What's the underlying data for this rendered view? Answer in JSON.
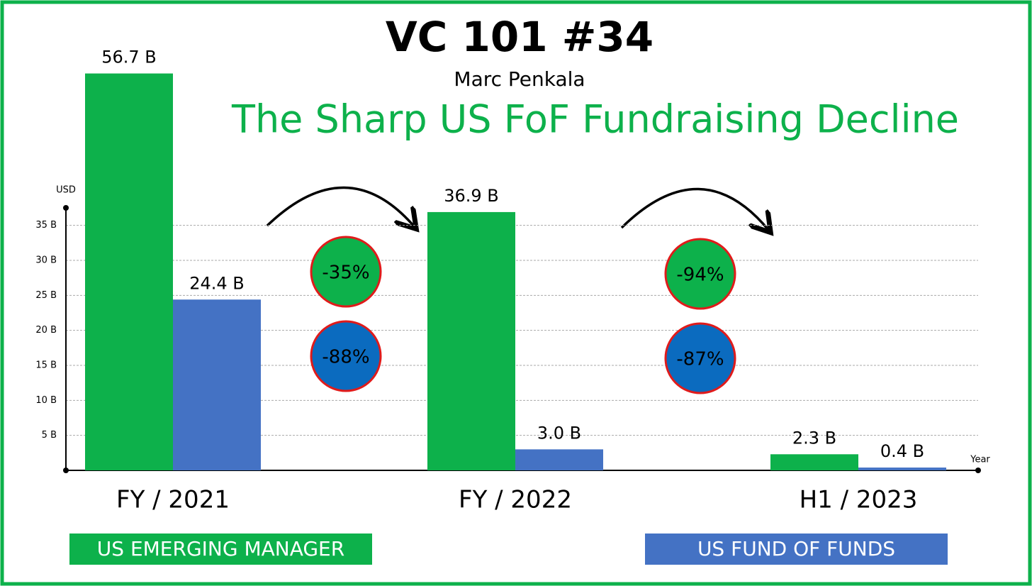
{
  "chart_data": {
    "type": "bar",
    "title": "VC 101 #34",
    "subtitle": "Marc Penkala",
    "headline": "The Sharp US FoF Fundraising Decline",
    "y_label": "USD",
    "x_label": "Year",
    "categories": [
      "FY / 2021",
      "FY / 2022",
      "H1 / 2023"
    ],
    "series": [
      {
        "name": "US EMERGING MANAGER",
        "color": "#0db14b",
        "values": [
          56.7,
          36.9,
          2.3
        ],
        "value_labels": [
          "56.7 B",
          "36.9 B",
          "2.3 B"
        ]
      },
      {
        "name": "US FUND OF FUNDS",
        "color": "#4472c4",
        "values": [
          24.4,
          3.0,
          0.4
        ],
        "value_labels": [
          "24.4 B",
          "3.0 B",
          "0.4 B"
        ]
      }
    ],
    "ylim": [
      0,
      37.5
    ],
    "yticks": [
      {
        "value": 5,
        "label": "5 B"
      },
      {
        "value": 10,
        "label": "10 B"
      },
      {
        "value": 15,
        "label": "15 B"
      },
      {
        "value": 20,
        "label": "20 B"
      },
      {
        "value": 25,
        "label": "25 B"
      },
      {
        "value": 30,
        "label": "30 B"
      },
      {
        "value": 35,
        "label": "35 B"
      }
    ],
    "grid": true,
    "annotations": [
      {
        "text": "-35%",
        "color": "#0db14b"
      },
      {
        "text": "-88%",
        "color": "#0b6bbf"
      },
      {
        "text": "-94%",
        "color": "#0db14b"
      },
      {
        "text": "-87%",
        "color": "#0b6bbf"
      }
    ]
  }
}
